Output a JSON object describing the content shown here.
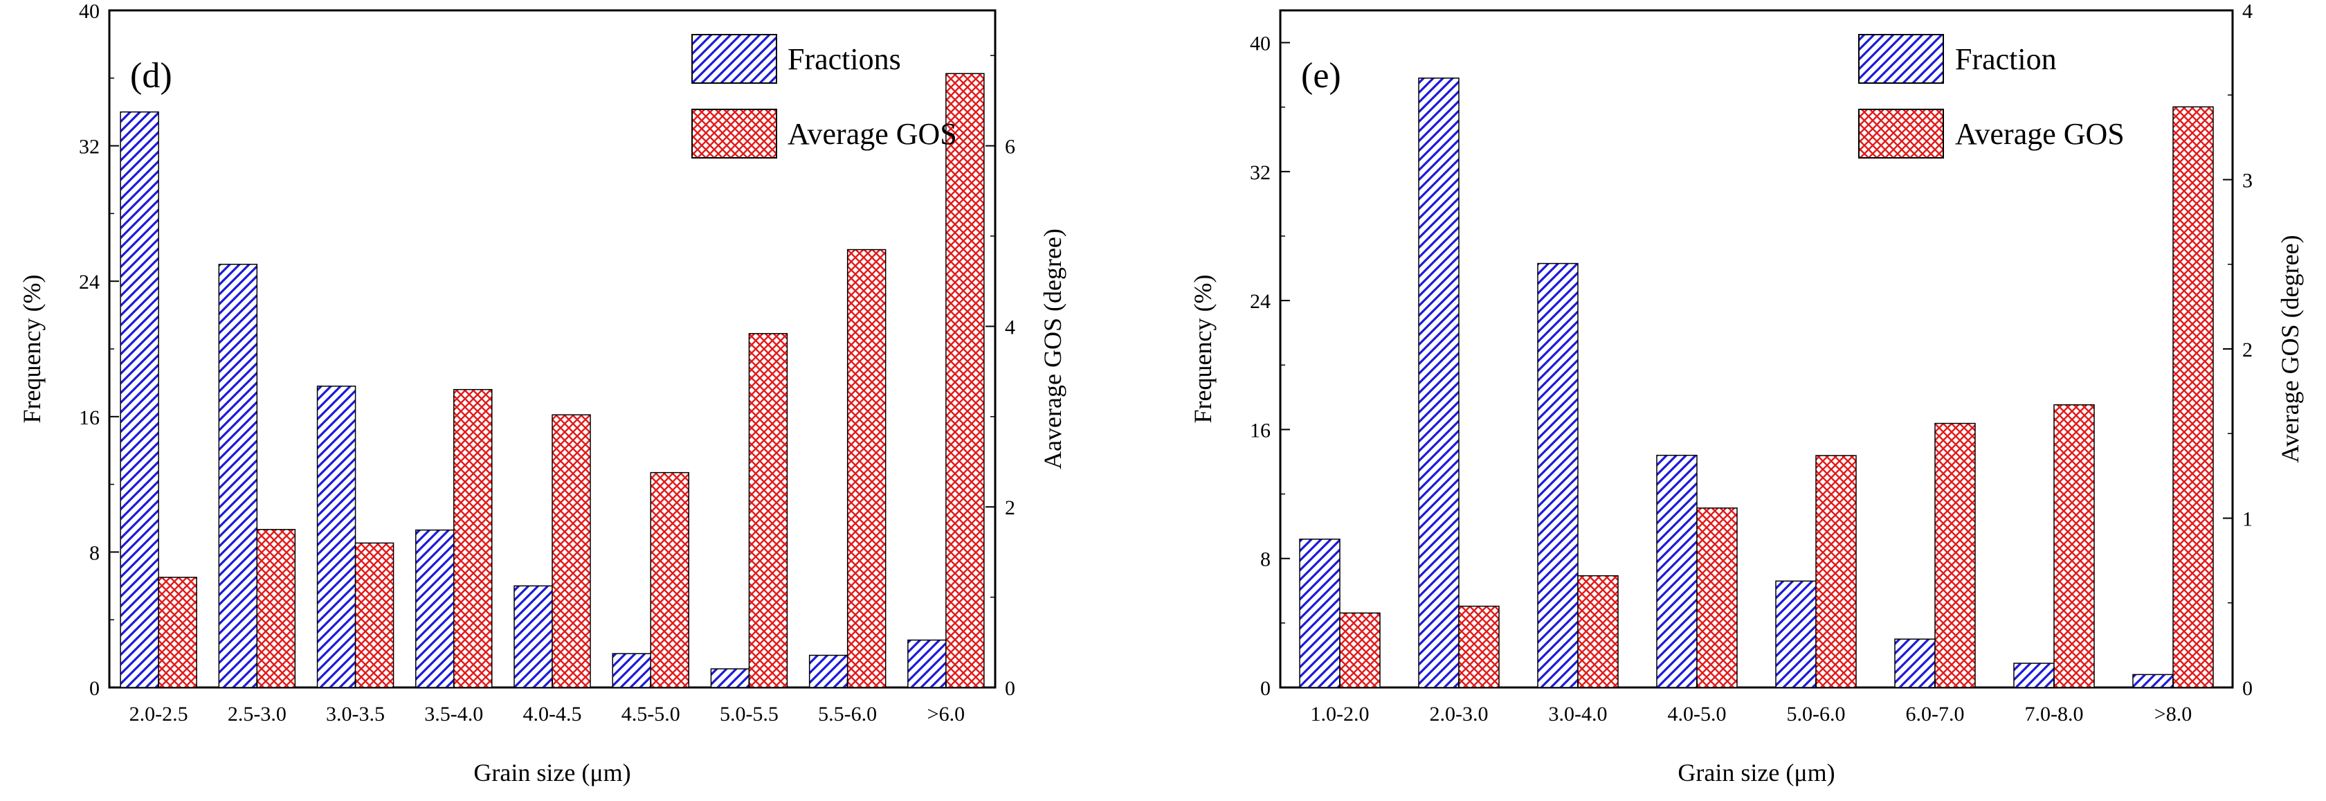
{
  "chart_data": [
    {
      "type": "bar",
      "panel_label": "(d)",
      "title": "",
      "xlabel": "Grain size (μm)",
      "ylabel": "Frequency (%)",
      "y2label": "Aaverage GOS (degree)",
      "ylim": [
        0,
        40
      ],
      "y2lim": [
        0,
        7.5
      ],
      "yticks": [
        "0",
        "8",
        "16",
        "24",
        "32",
        "40"
      ],
      "y2ticks": [
        "0",
        "2",
        "4",
        "6"
      ],
      "categories": [
        "2.0-2.5",
        "2.5-3.0",
        "3.0-3.5",
        "3.5-4.0",
        "4.0-4.5",
        "4.5-5.0",
        "5.0-5.5",
        "5.5-6.0",
        ">6.0"
      ],
      "series": [
        {
          "name": "Fractions",
          "axis": "left",
          "pattern": "hatch",
          "color": "#1a1adb",
          "values": [
            34.0,
            25.0,
            17.8,
            9.3,
            6.0,
            2.0,
            1.1,
            1.9,
            2.8
          ]
        },
        {
          "name": "Average GOS",
          "axis": "right",
          "pattern": "crosshatch",
          "color": "#e31a1a",
          "values": [
            1.22,
            1.75,
            1.6,
            3.3,
            3.02,
            2.38,
            3.92,
            4.85,
            6.8
          ]
        }
      ],
      "legend": "top-right"
    },
    {
      "type": "bar",
      "panel_label": "(e)",
      "title": "",
      "xlabel": "Grain size (μm)",
      "ylabel": "Frequency (%)",
      "y2label": "Average GOS (degree)",
      "ylim": [
        0,
        42
      ],
      "y2lim": [
        0,
        4
      ],
      "yticks": [
        "0",
        "8",
        "16",
        "24",
        "32",
        "40"
      ],
      "y2ticks": [
        "0",
        "1",
        "2",
        "3",
        "4"
      ],
      "categories": [
        "1.0-2.0",
        "2.0-3.0",
        "3.0-4.0",
        "4.0-5.0",
        "5.0-6.0",
        "6.0-7.0",
        "7.0-8.0",
        ">8.0"
      ],
      "series": [
        {
          "name": "Fraction",
          "axis": "left",
          "pattern": "hatch",
          "color": "#1a1adb",
          "values": [
            9.2,
            37.8,
            26.3,
            14.4,
            6.6,
            3.0,
            1.5,
            0.8
          ]
        },
        {
          "name": "Average GOS",
          "axis": "right",
          "pattern": "crosshatch",
          "color": "#e31a1a",
          "values": [
            0.44,
            0.48,
            0.66,
            1.06,
            1.37,
            1.56,
            1.67,
            3.43
          ]
        }
      ],
      "legend": "top-right"
    }
  ]
}
